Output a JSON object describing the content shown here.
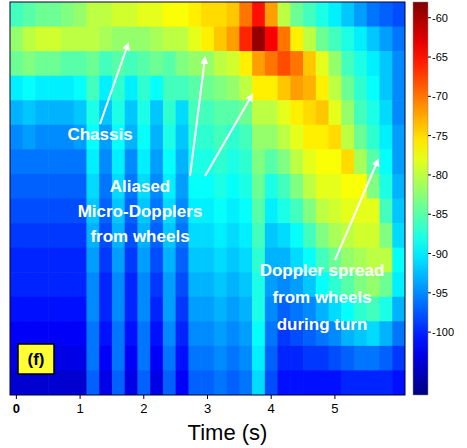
{
  "chart_data": {
    "type": "heatmap",
    "x_label": "Time (s)",
    "panel_label": "(f)",
    "xlim": [
      -0.1,
      6.1
    ],
    "xticks": [
      0,
      1,
      2,
      3,
      4,
      5
    ],
    "tick_labels": "x",
    "colorbar": {
      "range": [
        -108,
        -58
      ],
      "ticks": [
        -60,
        -65,
        -70,
        -75,
        -80,
        -85,
        -90,
        -95,
        -100
      ]
    },
    "annotations": [
      {
        "lines": [
          "Chassis"
        ]
      },
      {
        "lines": [
          "Aliased",
          "Micro-Dopplers",
          "from wheels"
        ]
      },
      {
        "lines": [
          "Doppler spread",
          "from wheels",
          "during turn"
        ]
      }
    ],
    "cells": [
      [
        -86,
        -85,
        -84,
        -84,
        -83,
        -82,
        -80,
        -80,
        -79,
        -79,
        -78,
        -78,
        -77,
        -77,
        -76,
        -75,
        -75,
        -74,
        -70,
        -65,
        -72,
        -80,
        -84,
        -86,
        -88,
        -90,
        -92,
        -94,
        -96,
        -97,
        -98
      ],
      [
        -82,
        -80,
        -79,
        -79,
        -80,
        -80,
        -80,
        -81,
        -82,
        -82,
        -82,
        -81,
        -80,
        -80,
        -78,
        -76,
        -74,
        -72,
        -66,
        -59,
        -64,
        -70,
        -76,
        -80,
        -84,
        -86,
        -88,
        -90,
        -92,
        -94,
        -96
      ],
      [
        -84,
        -83,
        -84,
        -84,
        -85,
        -85,
        -84,
        -86,
        -85,
        -86,
        -85,
        -84,
        -85,
        -83,
        -82,
        -82,
        -80,
        -79,
        -76,
        -72,
        -70,
        -68,
        -70,
        -74,
        -78,
        -82,
        -86,
        -88,
        -90,
        -92,
        -95
      ],
      [
        -90,
        -89,
        -90,
        -90,
        -90,
        -89,
        -86,
        -90,
        -87,
        -90,
        -87,
        -89,
        -86,
        -86,
        -85,
        -84,
        -83,
        -82,
        -80,
        -76,
        -76,
        -74,
        -72,
        -73,
        -76,
        -80,
        -84,
        -87,
        -89,
        -92,
        -95
      ],
      [
        -93,
        -92,
        -93,
        -93,
        -93,
        -92,
        -88,
        -92,
        -88,
        -92,
        -88,
        -92,
        -87,
        -91,
        -86,
        -86,
        -85,
        -85,
        -84,
        -80,
        -80,
        -78,
        -76,
        -75,
        -74,
        -78,
        -82,
        -86,
        -88,
        -91,
        -95
      ],
      [
        -95,
        -94,
        -95,
        -95,
        -95,
        -94,
        -89,
        -94,
        -89,
        -93,
        -89,
        -93,
        -88,
        -92,
        -87,
        -87,
        -86,
        -87,
        -86,
        -82,
        -82,
        -80,
        -78,
        -76,
        -76,
        -75,
        -80,
        -84,
        -87,
        -90,
        -94
      ],
      [
        -96,
        -96,
        -96,
        -96,
        -96,
        -96,
        -90,
        -95,
        -90,
        -95,
        -90,
        -94,
        -89,
        -93,
        -88,
        -88,
        -87,
        -88,
        -87,
        -83,
        -85,
        -83,
        -80,
        -78,
        -77,
        -77,
        -75,
        -81,
        -85,
        -89,
        -94
      ],
      [
        -97,
        -97,
        -97,
        -97,
        -97,
        -97,
        -91,
        -96,
        -91,
        -96,
        -91,
        -95,
        -90,
        -94,
        -89,
        -89,
        -88,
        -89,
        -88,
        -84,
        -88,
        -86,
        -83,
        -80,
        -78,
        -78,
        -77,
        -77,
        -83,
        -88,
        -93
      ],
      [
        -98,
        -98,
        -98,
        -98,
        -98,
        -98,
        -92,
        -97,
        -92,
        -97,
        -92,
        -96,
        -91,
        -95,
        -90,
        -90,
        -89,
        -90,
        -89,
        -85,
        -90,
        -88,
        -86,
        -83,
        -80,
        -79,
        -78,
        -78,
        -78,
        -86,
        -92
      ],
      [
        -99,
        -99,
        -99,
        -99,
        -99,
        -99,
        -93,
        -98,
        -93,
        -98,
        -93,
        -97,
        -92,
        -96,
        -91,
        -91,
        -90,
        -91,
        -90,
        -86,
        -92,
        -91,
        -89,
        -86,
        -83,
        -81,
        -80,
        -79,
        -79,
        -83,
        -91
      ],
      [
        -100,
        -100,
        -100,
        -100,
        -100,
        -100,
        -94,
        -99,
        -94,
        -99,
        -94,
        -98,
        -93,
        -97,
        -92,
        -92,
        -91,
        -92,
        -91,
        -87,
        -93,
        -93,
        -91,
        -89,
        -86,
        -84,
        -82,
        -81,
        -80,
        -80,
        -89
      ],
      [
        -100,
        -100,
        -100,
        -100,
        -100,
        -100,
        -95,
        -100,
        -95,
        -100,
        -95,
        -99,
        -94,
        -98,
        -93,
        -93,
        -92,
        -93,
        -92,
        -88,
        -94,
        -95,
        -94,
        -92,
        -89,
        -87,
        -85,
        -83,
        -82,
        -84,
        -90
      ],
      [
        -101,
        -101,
        -101,
        -101,
        -101,
        -101,
        -95,
        -100,
        -95,
        -100,
        -95,
        -100,
        -94,
        -99,
        -94,
        -94,
        -93,
        -94,
        -93,
        -88,
        -95,
        -97,
        -96,
        -95,
        -93,
        -91,
        -89,
        -87,
        -86,
        -88,
        -93
      ],
      [
        -102,
        -102,
        -102,
        -102,
        -102,
        -102,
        -96,
        -101,
        -96,
        -101,
        -96,
        -101,
        -95,
        -100,
        -95,
        -95,
        -94,
        -95,
        -94,
        -89,
        -96,
        -99,
        -98,
        -97,
        -96,
        -95,
        -93,
        -92,
        -91,
        -93,
        -96
      ],
      [
        -103,
        -103,
        -103,
        -103,
        -103,
        -103,
        -96,
        -102,
        -96,
        -102,
        -96,
        -102,
        -96,
        -101,
        -96,
        -96,
        -95,
        -96,
        -95,
        -90,
        -97,
        -100,
        -100,
        -99,
        -99,
        -98,
        -97,
        -96,
        -96,
        -97,
        -99
      ],
      [
        -104,
        -104,
        -104,
        -104,
        -104,
        -104,
        -97,
        -103,
        -97,
        -103,
        -97,
        -103,
        -97,
        -102,
        -97,
        -97,
        -96,
        -97,
        -96,
        -91,
        -98,
        -101,
        -101,
        -101,
        -101,
        -101,
        -100,
        -100,
        -100,
        -100,
        -101
      ]
    ]
  }
}
